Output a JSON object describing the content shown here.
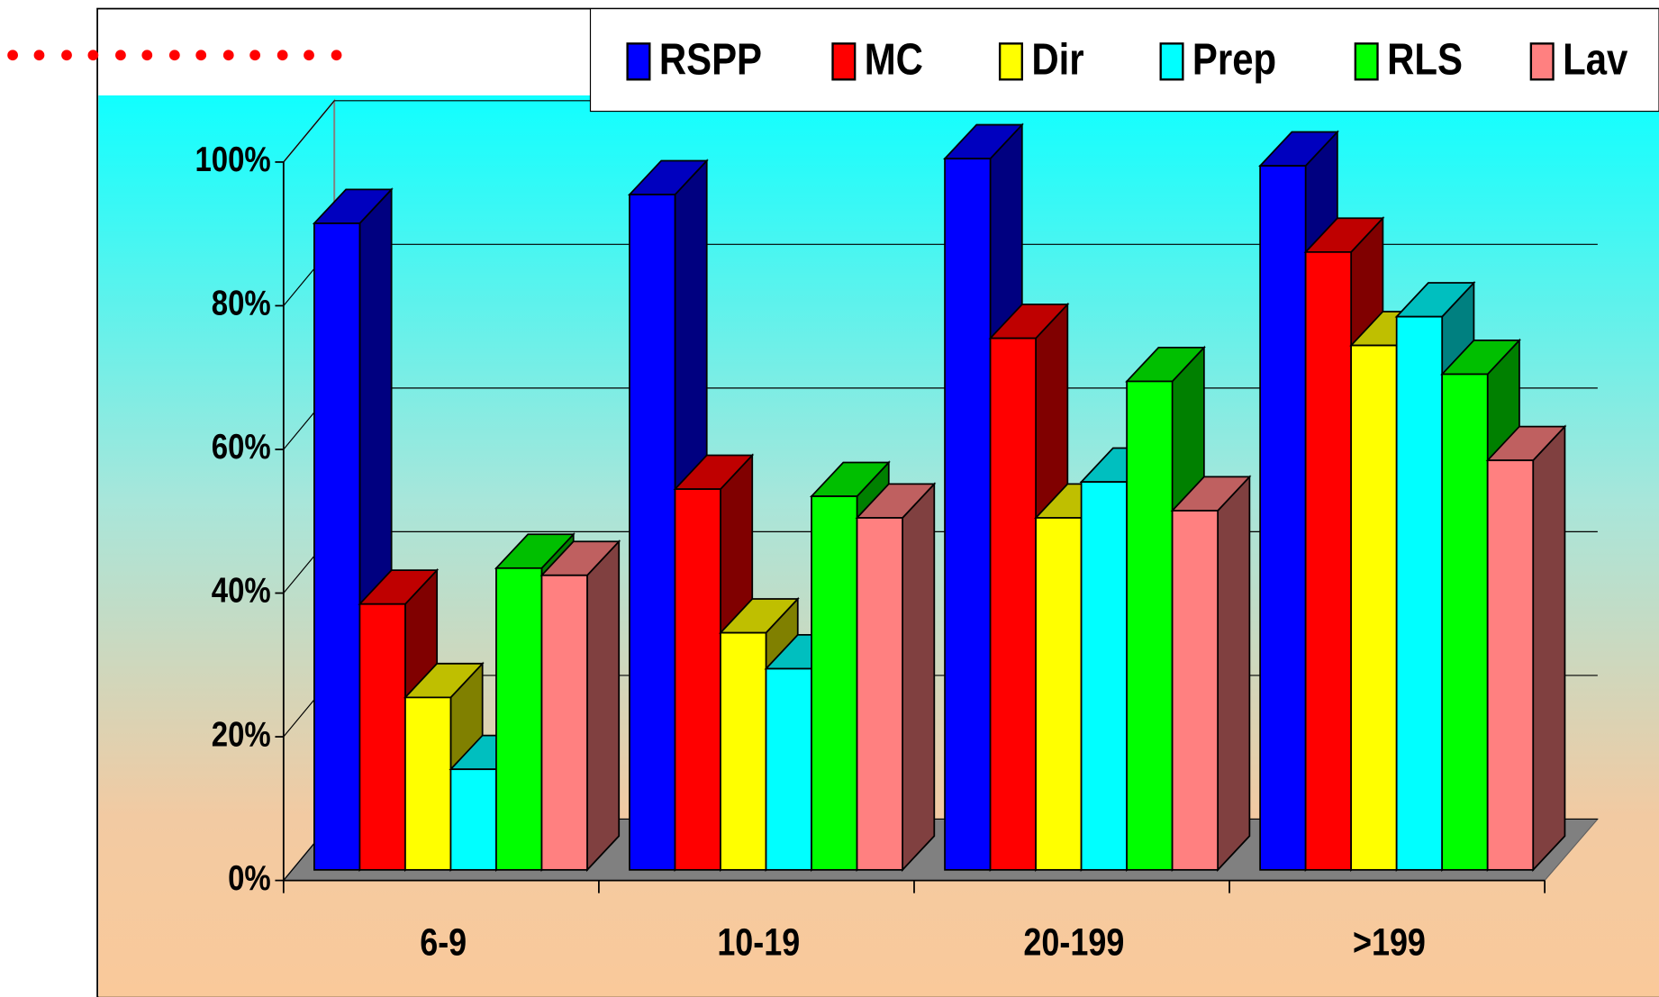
{
  "chart_data": {
    "type": "bar",
    "categories": [
      "6-9",
      "10-19",
      "20-199",
      ">199"
    ],
    "series": [
      {
        "name": "RSPP",
        "color": "#0000ff",
        "values": [
          90,
          94,
          99,
          98
        ]
      },
      {
        "name": "MC",
        "color": "#ff0000",
        "values": [
          37,
          53,
          74,
          86
        ]
      },
      {
        "name": "Dir",
        "color": "#ffff00",
        "values": [
          24,
          33,
          49,
          73
        ]
      },
      {
        "name": "Prep",
        "color": "#00ffff",
        "values": [
          14,
          28,
          54,
          77
        ]
      },
      {
        "name": "RLS",
        "color": "#00ff00",
        "values": [
          42,
          52,
          68,
          69
        ]
      },
      {
        "name": "Lav",
        "color": "#ff8080",
        "values": [
          41,
          49,
          50,
          57
        ]
      }
    ],
    "ylim": [
      0,
      100
    ],
    "yticks": [
      {
        "value": 0,
        "label": "0%"
      },
      {
        "value": 20,
        "label": "20%"
      },
      {
        "value": 40,
        "label": "40%"
      },
      {
        "value": 60,
        "label": "60%"
      },
      {
        "value": 80,
        "label": "80%"
      },
      {
        "value": 100,
        "label": "100%"
      }
    ],
    "grid": true
  }
}
